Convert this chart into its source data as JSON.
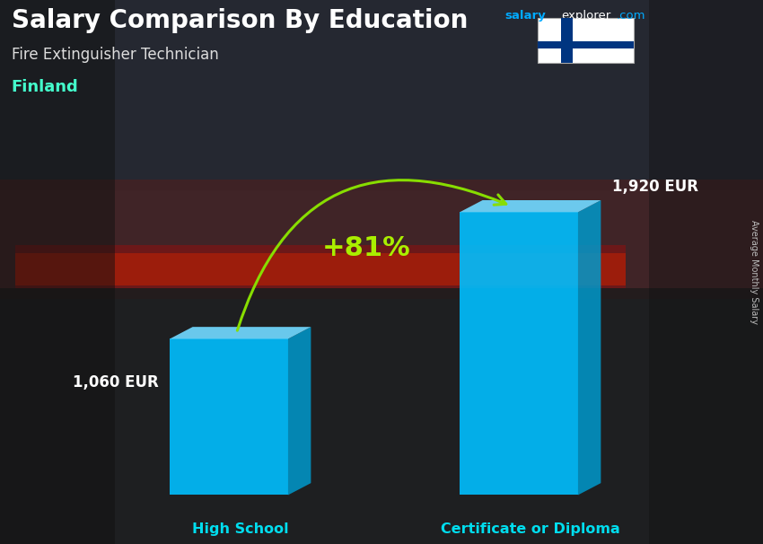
{
  "title": "Salary Comparison By Education",
  "subtitle": "Fire Extinguisher Technician",
  "country": "Finland",
  "ylabel_right": "Average Monthly Salary",
  "categories": [
    "High School",
    "Certificate or Diploma"
  ],
  "values": [
    1060,
    1920
  ],
  "value_labels": [
    "1,060 EUR",
    "1,920 EUR"
  ],
  "pct_change": "+81%",
  "bar_color_face": "#00BFFF",
  "bar_color_top": "#70D8FF",
  "bar_color_side": "#0099CC",
  "title_color": "#ffffff",
  "subtitle_color": "#dddddd",
  "country_color": "#44FFCC",
  "pct_color": "#AAEE00",
  "arrow_color": "#88DD00",
  "label_color": "#ffffff",
  "xticklabel_color": "#00DDEE",
  "site_color_salary": "#00AAFF",
  "site_color_explorer": "#ffffff",
  "site_color_com": "#00AAFF",
  "finland_flag_cross_color": "#003580",
  "finland_flag_bg": "#ffffff",
  "bg_colors": [
    "#1a2535",
    "#2a3545",
    "#3a3030",
    "#2a2020"
  ],
  "bg_top": "#1e2530",
  "bg_mid": "#2a2020",
  "bg_bot": "#151515"
}
